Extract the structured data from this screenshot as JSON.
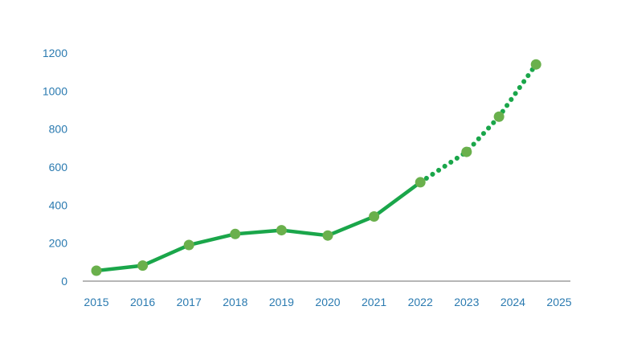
{
  "chart_data": {
    "type": "line",
    "x": [
      "2015",
      "2016",
      "2017",
      "2018",
      "2019",
      "2020",
      "2021",
      "2022",
      "2023",
      "2024",
      "2025"
    ],
    "y_ticks": [
      "0",
      "200",
      "400",
      "600",
      "800",
      "1000",
      "1200"
    ],
    "ylim": [
      0,
      1200
    ],
    "grid": false,
    "legend": "none",
    "series": [
      {
        "style": "solid",
        "points": [
          {
            "x": 2015,
            "y": 55
          },
          {
            "x": 2016,
            "y": 82
          },
          {
            "x": 2017,
            "y": 190
          },
          {
            "x": 2018,
            "y": 248
          },
          {
            "x": 2019,
            "y": 268
          },
          {
            "x": 2020,
            "y": 240
          },
          {
            "x": 2021,
            "y": 340
          },
          {
            "x": 2022,
            "y": 520
          }
        ]
      },
      {
        "style": "dotted",
        "points": [
          {
            "x": 2022,
            "y": 520
          },
          {
            "x": 2023,
            "y": 680
          },
          {
            "x": 2023.7,
            "y": 865
          },
          {
            "x": 2024.5,
            "y": 1140
          }
        ]
      }
    ],
    "colors": {
      "line": "#1aa64a",
      "marker": "#6ab04c",
      "tick_text": "#2a7ab0",
      "axis": "#8a8a8a"
    }
  }
}
